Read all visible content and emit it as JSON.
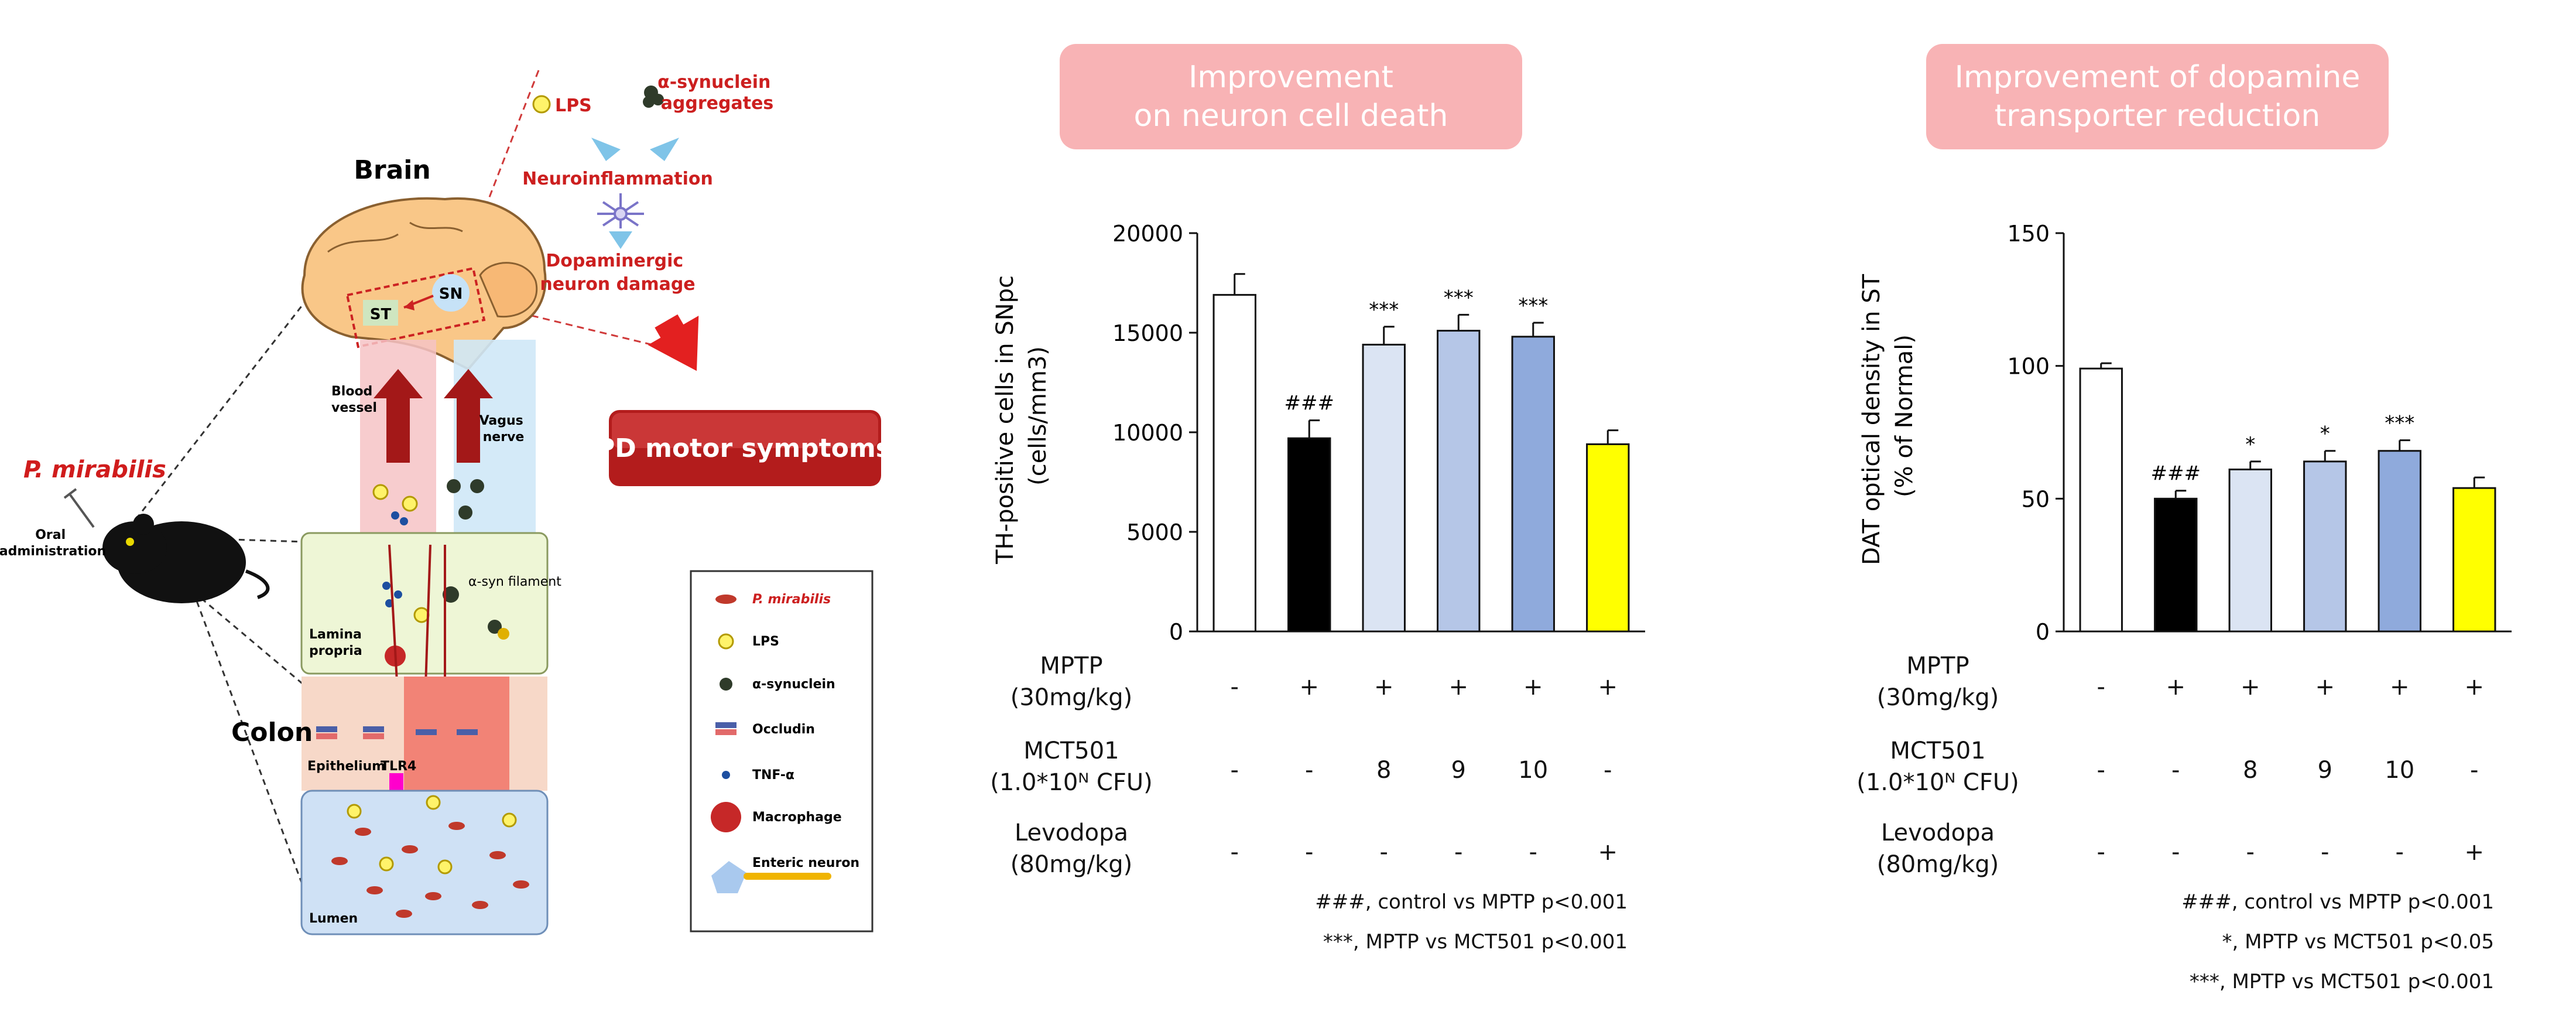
{
  "diagram": {
    "brain_label": "Brain",
    "st_label": "ST",
    "sn_label": "SN",
    "lps_label": "LPS",
    "asyn_label": "α-synuclein\naggregates",
    "neuroinflammation_label": "Neuroinflammation",
    "dopaminergic_label": "Dopaminergic\nneuron damage",
    "pd_label": "PD motor symptoms",
    "blood_vessel_label": "Blood\nvessel",
    "vagus_label": "Vagus\nnerve",
    "species_label": "P. mirabilis",
    "oral_label": "Oral\nadministration",
    "lamina_label": "Lamina\npropria",
    "asyn_filament_label": "α-syn filament",
    "colon_label": "Colon",
    "epithelium_label": "Epithelium",
    "tlr4_label": "TLR4",
    "lumen_label": "Lumen",
    "legend": [
      {
        "icon": "bacterium-icon",
        "label": "P. mirabilis"
      },
      {
        "icon": "lps-icon",
        "label": "LPS"
      },
      {
        "icon": "synuclein-icon",
        "label": "α-synuclein"
      },
      {
        "icon": "occludin-icon",
        "label": "Occludin"
      },
      {
        "icon": "tnf-icon",
        "label": "TNF-α"
      },
      {
        "icon": "macrophage-icon",
        "label": "Macrophage"
      },
      {
        "icon": "enteric-neuron-icon",
        "label": "Enteric neuron"
      }
    ]
  },
  "chart_data": [
    {
      "type": "bar",
      "title": "Improvement\non neuron cell death",
      "ylabel": "TH-positive cells in SNpc\n(cells/mm3)",
      "ylim": [
        0,
        20000
      ],
      "yticks": [
        "0",
        "5000",
        "10000",
        "15000",
        "20000"
      ],
      "ytick_values": [
        0,
        5000,
        10000,
        15000,
        20000
      ],
      "values": [
        16900,
        9700,
        14400,
        15100,
        14800,
        9400
      ],
      "errors": [
        1050,
        900,
        900,
        800,
        700,
        700
      ],
      "annotations": [
        "",
        "###",
        "***",
        "***",
        "***",
        ""
      ],
      "bar_colors": [
        "#ffffff",
        "#000000",
        "#dbe4f3",
        "#b5c6e7",
        "#8faadc",
        "#ffff00"
      ],
      "rows": [
        {
          "label": "MPTP\n(30mg/kg)",
          "cells": [
            "-",
            "+",
            "+",
            "+",
            "+",
            "+"
          ]
        },
        {
          "label": "MCT501\n(1.0*10ᴺ CFU)",
          "cells": [
            "-",
            "-",
            "8",
            "9",
            "10",
            "-"
          ]
        },
        {
          "label": "Levodopa\n(80mg/kg)",
          "cells": [
            "-",
            "-",
            "-",
            "-",
            "-",
            "+"
          ]
        }
      ],
      "footnotes": [
        "###, control vs MPTP p<0.001",
        "***, MPTP vs MCT501 p<0.001"
      ]
    },
    {
      "type": "bar",
      "title": "Improvement of dopamine\ntransporter reduction",
      "ylabel": "DAT optical density in ST\n(% of Normal)",
      "ylim": [
        0,
        150
      ],
      "yticks": [
        "0",
        "50",
        "100",
        "150"
      ],
      "ytick_values": [
        0,
        50,
        100,
        150
      ],
      "values": [
        99,
        50,
        61,
        64,
        68,
        54
      ],
      "errors": [
        2,
        3,
        3,
        4,
        4,
        4
      ],
      "annotations": [
        "",
        "###",
        "*",
        "*",
        "***",
        ""
      ],
      "bar_colors": [
        "#ffffff",
        "#000000",
        "#dbe4f3",
        "#b5c6e7",
        "#8faadc",
        "#ffff00"
      ],
      "rows": [
        {
          "label": "MPTP\n(30mg/kg)",
          "cells": [
            "-",
            "+",
            "+",
            "+",
            "+",
            "+"
          ]
        },
        {
          "label": "MCT501\n(1.0*10ᴺ CFU)",
          "cells": [
            "-",
            "-",
            "8",
            "9",
            "10",
            "-"
          ]
        },
        {
          "label": "Levodopa\n(80mg/kg)",
          "cells": [
            "-",
            "-",
            "-",
            "-",
            "-",
            "+"
          ]
        }
      ],
      "footnotes": [
        "###, control vs MPTP p<0.001",
        "*, MPTP vs MCT501 p<0.05",
        "***, MPTP vs MCT501 p<0.001"
      ]
    }
  ]
}
